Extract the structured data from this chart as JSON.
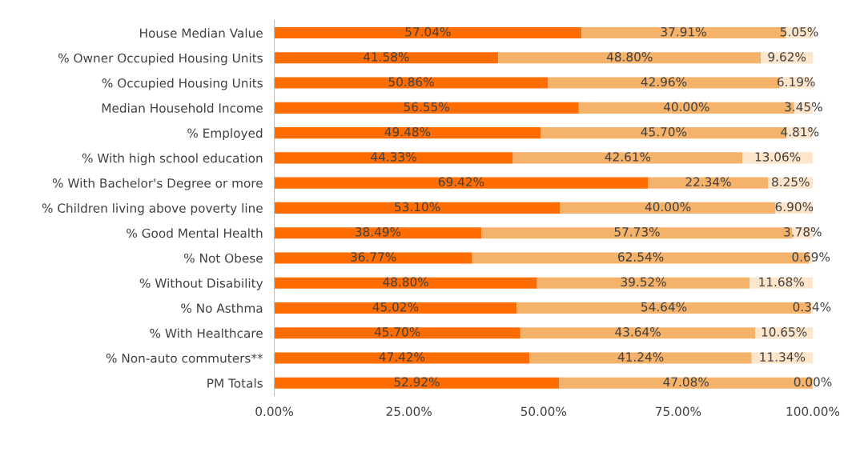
{
  "chart_data": {
    "type": "bar",
    "orientation": "horizontal",
    "stacked": true,
    "categories": [
      "House Median Value",
      "% Owner Occupied Housing Units",
      "% Occupied Housing Units",
      "Median Household Income",
      "% Employed",
      "% With high school education",
      "% With Bachelor's Degree or more",
      "% Children living above poverty line",
      "% Good Mental Health",
      "% Not Obese",
      "% Without Disability",
      "% No Asthma",
      "% With Healthcare",
      "% Non-auto commuters**",
      "PM Totals"
    ],
    "series": [
      {
        "color": "#ff6d00",
        "values": [
          57.04,
          41.58,
          50.86,
          56.55,
          49.48,
          44.33,
          69.42,
          53.1,
          38.49,
          36.77,
          48.8,
          45.02,
          45.7,
          47.42,
          52.92
        ],
        "value_labels": [
          "57.04%",
          "41.58%",
          "50.86%",
          "56.55%",
          "49.48%",
          "44.33%",
          "69.42%",
          "53.10%",
          "38.49%",
          "36.77%",
          "48.80%",
          "45.02%",
          "45.70%",
          "47.42%",
          "52.92%"
        ]
      },
      {
        "color": "#f5b26b",
        "values": [
          37.91,
          48.8,
          42.96,
          40.0,
          45.7,
          42.61,
          22.34,
          40.0,
          57.73,
          62.54,
          39.52,
          54.64,
          43.64,
          41.24,
          47.08
        ],
        "value_labels": [
          "37.91%",
          "48.80%",
          "42.96%",
          "40.00%",
          "45.70%",
          "42.61%",
          "22.34%",
          "40.00%",
          "57.73%",
          "62.54%",
          "39.52%",
          "54.64%",
          "43.64%",
          "41.24%",
          "47.08%"
        ]
      },
      {
        "color": "#fde5cc",
        "values": [
          5.05,
          9.62,
          6.19,
          3.45,
          4.81,
          13.06,
          8.25,
          6.9,
          3.78,
          0.69,
          11.68,
          0.34,
          10.65,
          11.34,
          0.0
        ],
        "value_labels": [
          "5.05%",
          "9.62%",
          "6.19%",
          "3.45%",
          "4.81%",
          "13.06%",
          "8.25%",
          "6.90%",
          "3.78%",
          "0.69%",
          "11.68%",
          "0.34%",
          "10.65%",
          "11.34%",
          "0.00%"
        ]
      }
    ],
    "xlim": [
      0,
      100
    ],
    "xticks": [
      {
        "value": 0,
        "label": "0.00%"
      },
      {
        "value": 25,
        "label": "25.00%"
      },
      {
        "value": 50,
        "label": "50.00%"
      },
      {
        "value": 75,
        "label": "75.00%"
      },
      {
        "value": 100,
        "label": "100.00%"
      }
    ],
    "grid": false,
    "legend": false
  }
}
